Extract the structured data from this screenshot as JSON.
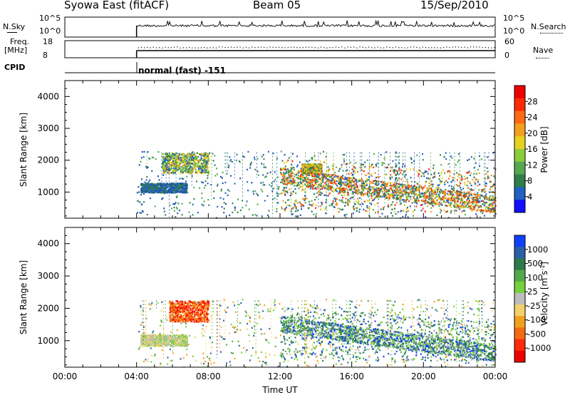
{
  "header": {
    "station": "Syowa East (fitACF)",
    "beam": "Beam 05",
    "date": "15/Sep/2010"
  },
  "top_panels": {
    "nsky_label": "N.Sky",
    "nsky_ticks": [
      "10^5",
      "10^0"
    ],
    "nsearch_label": "N.Search",
    "nsearch_ticks": [
      "10^5",
      "10^0"
    ],
    "freq_label": "Freq.",
    "freq_unit": "[MHz]",
    "freq_ticks": [
      "18",
      "8"
    ],
    "nave_label": "Nave",
    "nave_ticks": [
      "60",
      "0"
    ],
    "cpid_label": "CPID",
    "cpid_text": "normal (fast) -151"
  },
  "chart_data": [
    {
      "type": "heatmap",
      "title": "",
      "ylabel": "Slant Range [km]",
      "xlabel": "",
      "ylim": [
        180,
        4500
      ],
      "yticks": [
        1000,
        2000,
        3000,
        4000
      ],
      "xlim": [
        0,
        24
      ],
      "data_start_hour": 4,
      "colorbar": {
        "label": "Power [dB]",
        "ticks": [
          "4",
          "8",
          "12",
          "16",
          "20",
          "24",
          "28"
        ],
        "range": [
          0,
          30
        ],
        "colors": [
          "#1010ff",
          "#2060c0",
          "#307e4a",
          "#55a850",
          "#8ccc3c",
          "#e6d21e",
          "#f2a01e",
          "#ff6a12",
          "#ff2a0a",
          "#ee0000"
        ]
      },
      "regions": [
        {
          "x": [
            5.4,
            8.0
          ],
          "y": [
            1600,
            2250
          ],
          "level": "mixed"
        },
        {
          "x": [
            4.2,
            6.8
          ],
          "y": [
            1000,
            1300
          ],
          "level": "low"
        },
        {
          "x": [
            13.2,
            14.3
          ],
          "y": [
            1600,
            1900
          ],
          "level": "medium"
        },
        {
          "x": [
            12.0,
            24.0
          ],
          "y": [
            400,
            1400
          ],
          "level": "high"
        }
      ]
    },
    {
      "type": "heatmap",
      "title": "",
      "ylabel": "Slant Range [km]",
      "xlabel": "Time UT",
      "ylim": [
        180,
        4500
      ],
      "yticks": [
        1000,
        2000,
        3000,
        4000
      ],
      "xlim": [
        0,
        24
      ],
      "xticks": [
        "00:00",
        "04:00",
        "08:00",
        "12:00",
        "16:00",
        "20:00",
        "00:00"
      ],
      "colorbar": {
        "label": "Velocity [m s",
        "label_sup": "-1",
        "label_end": "]",
        "ticks": [
          "1000",
          "500",
          "100",
          "25",
          "-25",
          "-100",
          "-500",
          "-1000"
        ],
        "colors": [
          "#1040ff",
          "#2a5fa8",
          "#2f7a4a",
          "#52a84a",
          "#74d23c",
          "#bdbdbd",
          "#f4d06a",
          "#f2a020",
          "#f46a12",
          "#ff2a0a",
          "#ee0000"
        ]
      },
      "regions": [
        {
          "x": [
            5.8,
            8.0
          ],
          "y": [
            1600,
            2250
          ],
          "level": "negative"
        },
        {
          "x": [
            4.2,
            6.8
          ],
          "y": [
            850,
            1200
          ],
          "level": "near-zero"
        },
        {
          "x": [
            12.0,
            24.0
          ],
          "y": [
            400,
            1400
          ],
          "level": "positive"
        }
      ]
    }
  ]
}
